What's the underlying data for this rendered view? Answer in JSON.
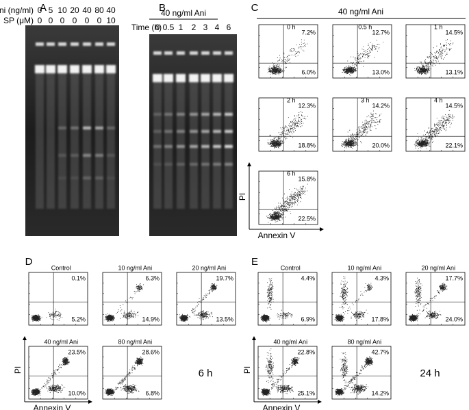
{
  "panels": {
    "A": {
      "label": "A",
      "rows": [
        {
          "label": "Ani (ng/ml)",
          "values": [
            "0",
            "5",
            "10",
            "20",
            "40",
            "80",
            "40"
          ]
        },
        {
          "label": "SP (μM)",
          "values": [
            "0",
            "0",
            "0",
            "0",
            "0",
            "0",
            "10"
          ]
        }
      ]
    },
    "B": {
      "label": "B",
      "header": "40 ng/ml Ani",
      "time_label": "Time (h)",
      "lanes": [
        "0",
        "0.5",
        "1",
        "2",
        "3",
        "4",
        "6"
      ]
    },
    "C": {
      "label": "C",
      "header": "40 ng/ml Ani",
      "y_label": "PI",
      "x_label": "Annexin V",
      "plots": [
        {
          "title": "0 h",
          "upper_right": "7.2%",
          "lower_right": "6.0%"
        },
        {
          "title": "0.5 h",
          "upper_right": "12.7%",
          "lower_right": "13.0%"
        },
        {
          "title": "1 h",
          "upper_right": "14.5%",
          "lower_right": "13.1%"
        },
        {
          "title": "2 h",
          "upper_right": "12.3%",
          "lower_right": "18.8%"
        },
        {
          "title": "3 h",
          "upper_right": "14.2%",
          "lower_right": "20.0%"
        },
        {
          "title": "4 h",
          "upper_right": "14.5%",
          "lower_right": "22.1%"
        },
        {
          "title": "6 h",
          "upper_right": "15.8%",
          "lower_right": "22.5%"
        }
      ]
    },
    "D": {
      "label": "D",
      "time": "6 h",
      "y_label": "PI",
      "x_label": "Annexin V",
      "plots": [
        {
          "title": "Control",
          "upper_right": "0.1%",
          "lower_right": "5.2%"
        },
        {
          "title": "10 ng/ml Ani",
          "upper_right": "6.3%",
          "lower_right": "14.9%"
        },
        {
          "title": "20 ng/ml Ani",
          "upper_right": "19.7%",
          "lower_right": "13.5%"
        },
        {
          "title": "40 ng/ml Ani",
          "upper_right": "23.5%",
          "lower_right": "10.0%"
        },
        {
          "title": "80 ng/ml Ani",
          "upper_right": "28.6%",
          "lower_right": "6.8%"
        }
      ]
    },
    "E": {
      "label": "E",
      "time": "24 h",
      "y_label": "PI",
      "x_label": "Annexin V",
      "plots": [
        {
          "title": "Control",
          "upper_right": "4.4%",
          "lower_right": "6.9%"
        },
        {
          "title": "10 ng/ml Ani",
          "upper_right": "4.3%",
          "lower_right": "17.8%"
        },
        {
          "title": "20 ng/ml Ani",
          "upper_right": "17.7%",
          "lower_right": "24.0%"
        },
        {
          "title": "40 ng/ml Ani",
          "upper_right": "22.8%",
          "lower_right": "25.1%"
        },
        {
          "title": "80 ng/ml Ani",
          "upper_right": "42.7%",
          "lower_right": "14.2%"
        }
      ]
    }
  }
}
